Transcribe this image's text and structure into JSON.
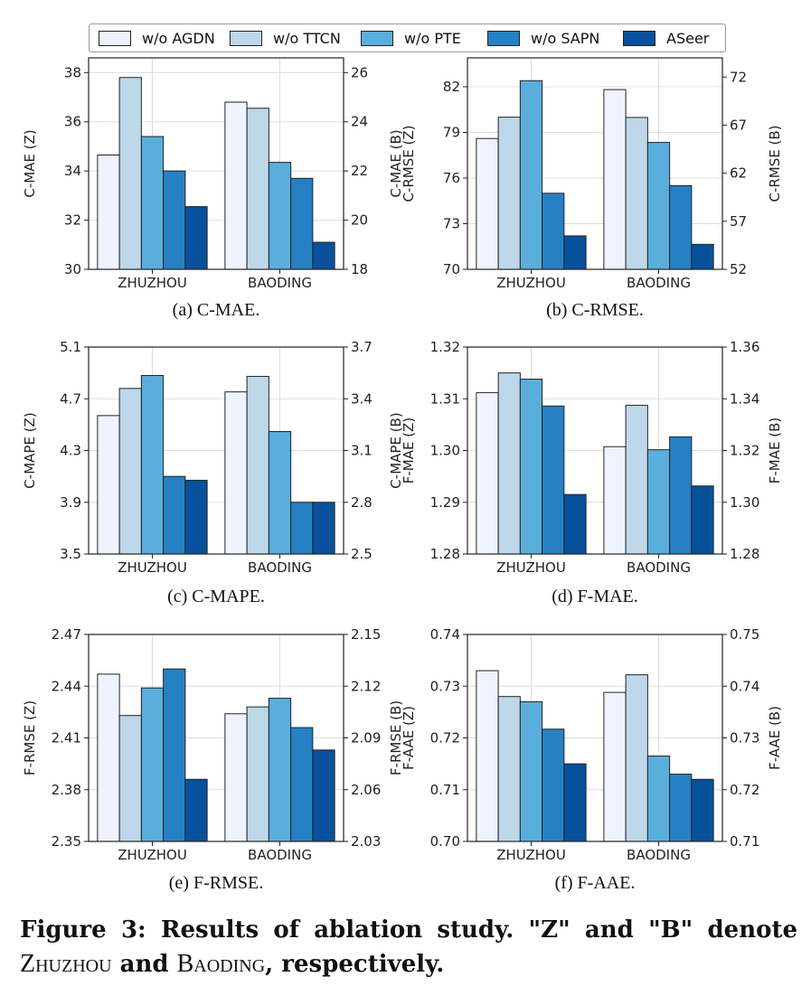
{
  "legend": {
    "items": [
      {
        "label": "w/o AGDN",
        "color": "#eff3ff"
      },
      {
        "label": "w/o TTCN",
        "color": "#bcd8e9"
      },
      {
        "label": "w/o PTE",
        "color": "#5aaedc"
      },
      {
        "label": "w/o SAPN",
        "color": "#2581c4"
      },
      {
        "label": "ASeer",
        "color": "#08519c"
      }
    ]
  },
  "captions": {
    "a": "(a) C-MAE.",
    "b": "(b) C-RMSE.",
    "c": "(c) C-MAPE.",
    "d": "(d) F-MAE.",
    "e": "(e) F-RMSE.",
    "f": "(f) F-AAE."
  },
  "figure_caption": {
    "bold_1": "Figure 3: Results of ablation study. \"Z\" and \"B\" denote",
    "sc_1": "Zhuzhou",
    "bold_2": "and",
    "sc_2": "Baoding",
    "bold_3": ", respectively."
  },
  "chart_data": [
    {
      "id": "a",
      "type": "bar",
      "categories": [
        "ZHUZHOU",
        "BAODING"
      ],
      "ylabel": "C-MAE (Z)",
      "y2label": "C-MAE (B)",
      "ylim": [
        30,
        38.6
      ],
      "y2lim": [
        18,
        26.6
      ],
      "yticks": [
        "30",
        "32",
        "34",
        "36",
        "38"
      ],
      "y2ticks": [
        "18",
        "20",
        "22",
        "24",
        "26"
      ],
      "series": [
        {
          "name": "w/o AGDN",
          "values": [
            34.65,
            24.8
          ]
        },
        {
          "name": "w/o TTCN",
          "values": [
            37.8,
            24.55
          ]
        },
        {
          "name": "w/o PTE",
          "values": [
            35.4,
            22.35
          ]
        },
        {
          "name": "w/o SAPN",
          "values": [
            34.0,
            21.7
          ]
        },
        {
          "name": "ASeer",
          "values": [
            32.55,
            19.1
          ]
        }
      ]
    },
    {
      "id": "b",
      "type": "bar",
      "categories": [
        "ZHUZHOU",
        "BAODING"
      ],
      "ylabel": "C-RMSE (Z)",
      "y2label": "C-RMSE (B)",
      "ylim": [
        70,
        83.9
      ],
      "y2lim": [
        52,
        74
      ],
      "yticks": [
        "70",
        "73",
        "76",
        "79",
        "82"
      ],
      "y2ticks": [
        "52",
        "57",
        "62",
        "67",
        "72"
      ],
      "series": [
        {
          "name": "w/o AGDN",
          "values": [
            78.6,
            70.7
          ]
        },
        {
          "name": "w/o TTCN",
          "values": [
            80.0,
            67.8
          ]
        },
        {
          "name": "w/o PTE",
          "values": [
            82.4,
            65.2
          ]
        },
        {
          "name": "w/o SAPN",
          "values": [
            75.0,
            60.7
          ]
        },
        {
          "name": "ASeer",
          "values": [
            72.2,
            54.6
          ]
        }
      ]
    },
    {
      "id": "c",
      "type": "bar",
      "categories": [
        "ZHUZHOU",
        "BAODING"
      ],
      "ylabel": "C-MAPE (Z)",
      "y2label": "C-MAPE (B)",
      "ylim": [
        3.5,
        5.1
      ],
      "y2lim": [
        2.5,
        3.7
      ],
      "yticks": [
        "3.5",
        "3.9",
        "4.3",
        "4.7",
        "5.1"
      ],
      "y2ticks": [
        "2.5",
        "2.8",
        "3.1",
        "3.4",
        "3.7"
      ],
      "series": [
        {
          "name": "w/o AGDN",
          "values": [
            4.57,
            3.44
          ]
        },
        {
          "name": "w/o TTCN",
          "values": [
            4.78,
            3.53
          ]
        },
        {
          "name": "w/o PTE",
          "values": [
            4.88,
            3.21
          ]
        },
        {
          "name": "w/o SAPN",
          "values": [
            4.1,
            2.8
          ]
        },
        {
          "name": "ASeer",
          "values": [
            4.07,
            2.8
          ]
        }
      ]
    },
    {
      "id": "d",
      "type": "bar",
      "categories": [
        "ZHUZHOU",
        "BAODING"
      ],
      "ylabel": "F-MAE (Z)",
      "y2label": "F-MAE (B)",
      "ylim": [
        1.28,
        1.32
      ],
      "y2lim": [
        1.28,
        1.36
      ],
      "yticks": [
        "1.28",
        "1.29",
        "1.30",
        "1.31",
        "1.32"
      ],
      "y2ticks": [
        "1.28",
        "1.30",
        "1.32",
        "1.34",
        "1.36"
      ],
      "series": [
        {
          "name": "w/o AGDN",
          "values": [
            1.3112,
            1.3215
          ]
        },
        {
          "name": "w/o TTCN",
          "values": [
            1.315,
            1.3375
          ]
        },
        {
          "name": "w/o PTE",
          "values": [
            1.3138,
            1.3203
          ]
        },
        {
          "name": "w/o SAPN",
          "values": [
            1.3086,
            1.3253
          ]
        },
        {
          "name": "ASeer",
          "values": [
            1.2915,
            1.3063
          ]
        }
      ]
    },
    {
      "id": "e",
      "type": "bar",
      "categories": [
        "ZHUZHOU",
        "BAODING"
      ],
      "ylabel": "F-RMSE (Z)",
      "y2label": "F-RMSE (B)",
      "ylim": [
        2.35,
        2.47
      ],
      "y2lim": [
        2.03,
        2.15
      ],
      "yticks": [
        "2.35",
        "2.38",
        "2.41",
        "2.44",
        "2.47"
      ],
      "y2ticks": [
        "2.03",
        "2.06",
        "2.09",
        "2.12",
        "2.15"
      ],
      "series": [
        {
          "name": "w/o AGDN",
          "values": [
            2.447,
            2.104
          ]
        },
        {
          "name": "w/o TTCN",
          "values": [
            2.423,
            2.108
          ]
        },
        {
          "name": "w/o PTE",
          "values": [
            2.439,
            2.113
          ]
        },
        {
          "name": "w/o SAPN",
          "values": [
            2.45,
            2.096
          ]
        },
        {
          "name": "ASeer",
          "values": [
            2.386,
            2.083
          ]
        }
      ]
    },
    {
      "id": "f",
      "type": "bar",
      "categories": [
        "ZHUZHOU",
        "BAODING"
      ],
      "ylabel": "F-AAE (Z)",
      "y2label": "F-AAE (B)",
      "ylim": [
        0.7,
        0.74
      ],
      "y2lim": [
        0.71,
        0.75
      ],
      "yticks": [
        "0.70",
        "0.71",
        "0.72",
        "0.73",
        "0.74"
      ],
      "y2ticks": [
        "0.71",
        "0.72",
        "0.73",
        "0.74",
        "0.75"
      ],
      "series": [
        {
          "name": "w/o AGDN",
          "values": [
            0.733,
            0.7388
          ]
        },
        {
          "name": "w/o TTCN",
          "values": [
            0.728,
            0.7422
          ]
        },
        {
          "name": "w/o PTE",
          "values": [
            0.727,
            0.7265
          ]
        },
        {
          "name": "w/o SAPN",
          "values": [
            0.7217,
            0.723
          ]
        },
        {
          "name": "ASeer",
          "values": [
            0.715,
            0.722
          ]
        }
      ]
    }
  ]
}
